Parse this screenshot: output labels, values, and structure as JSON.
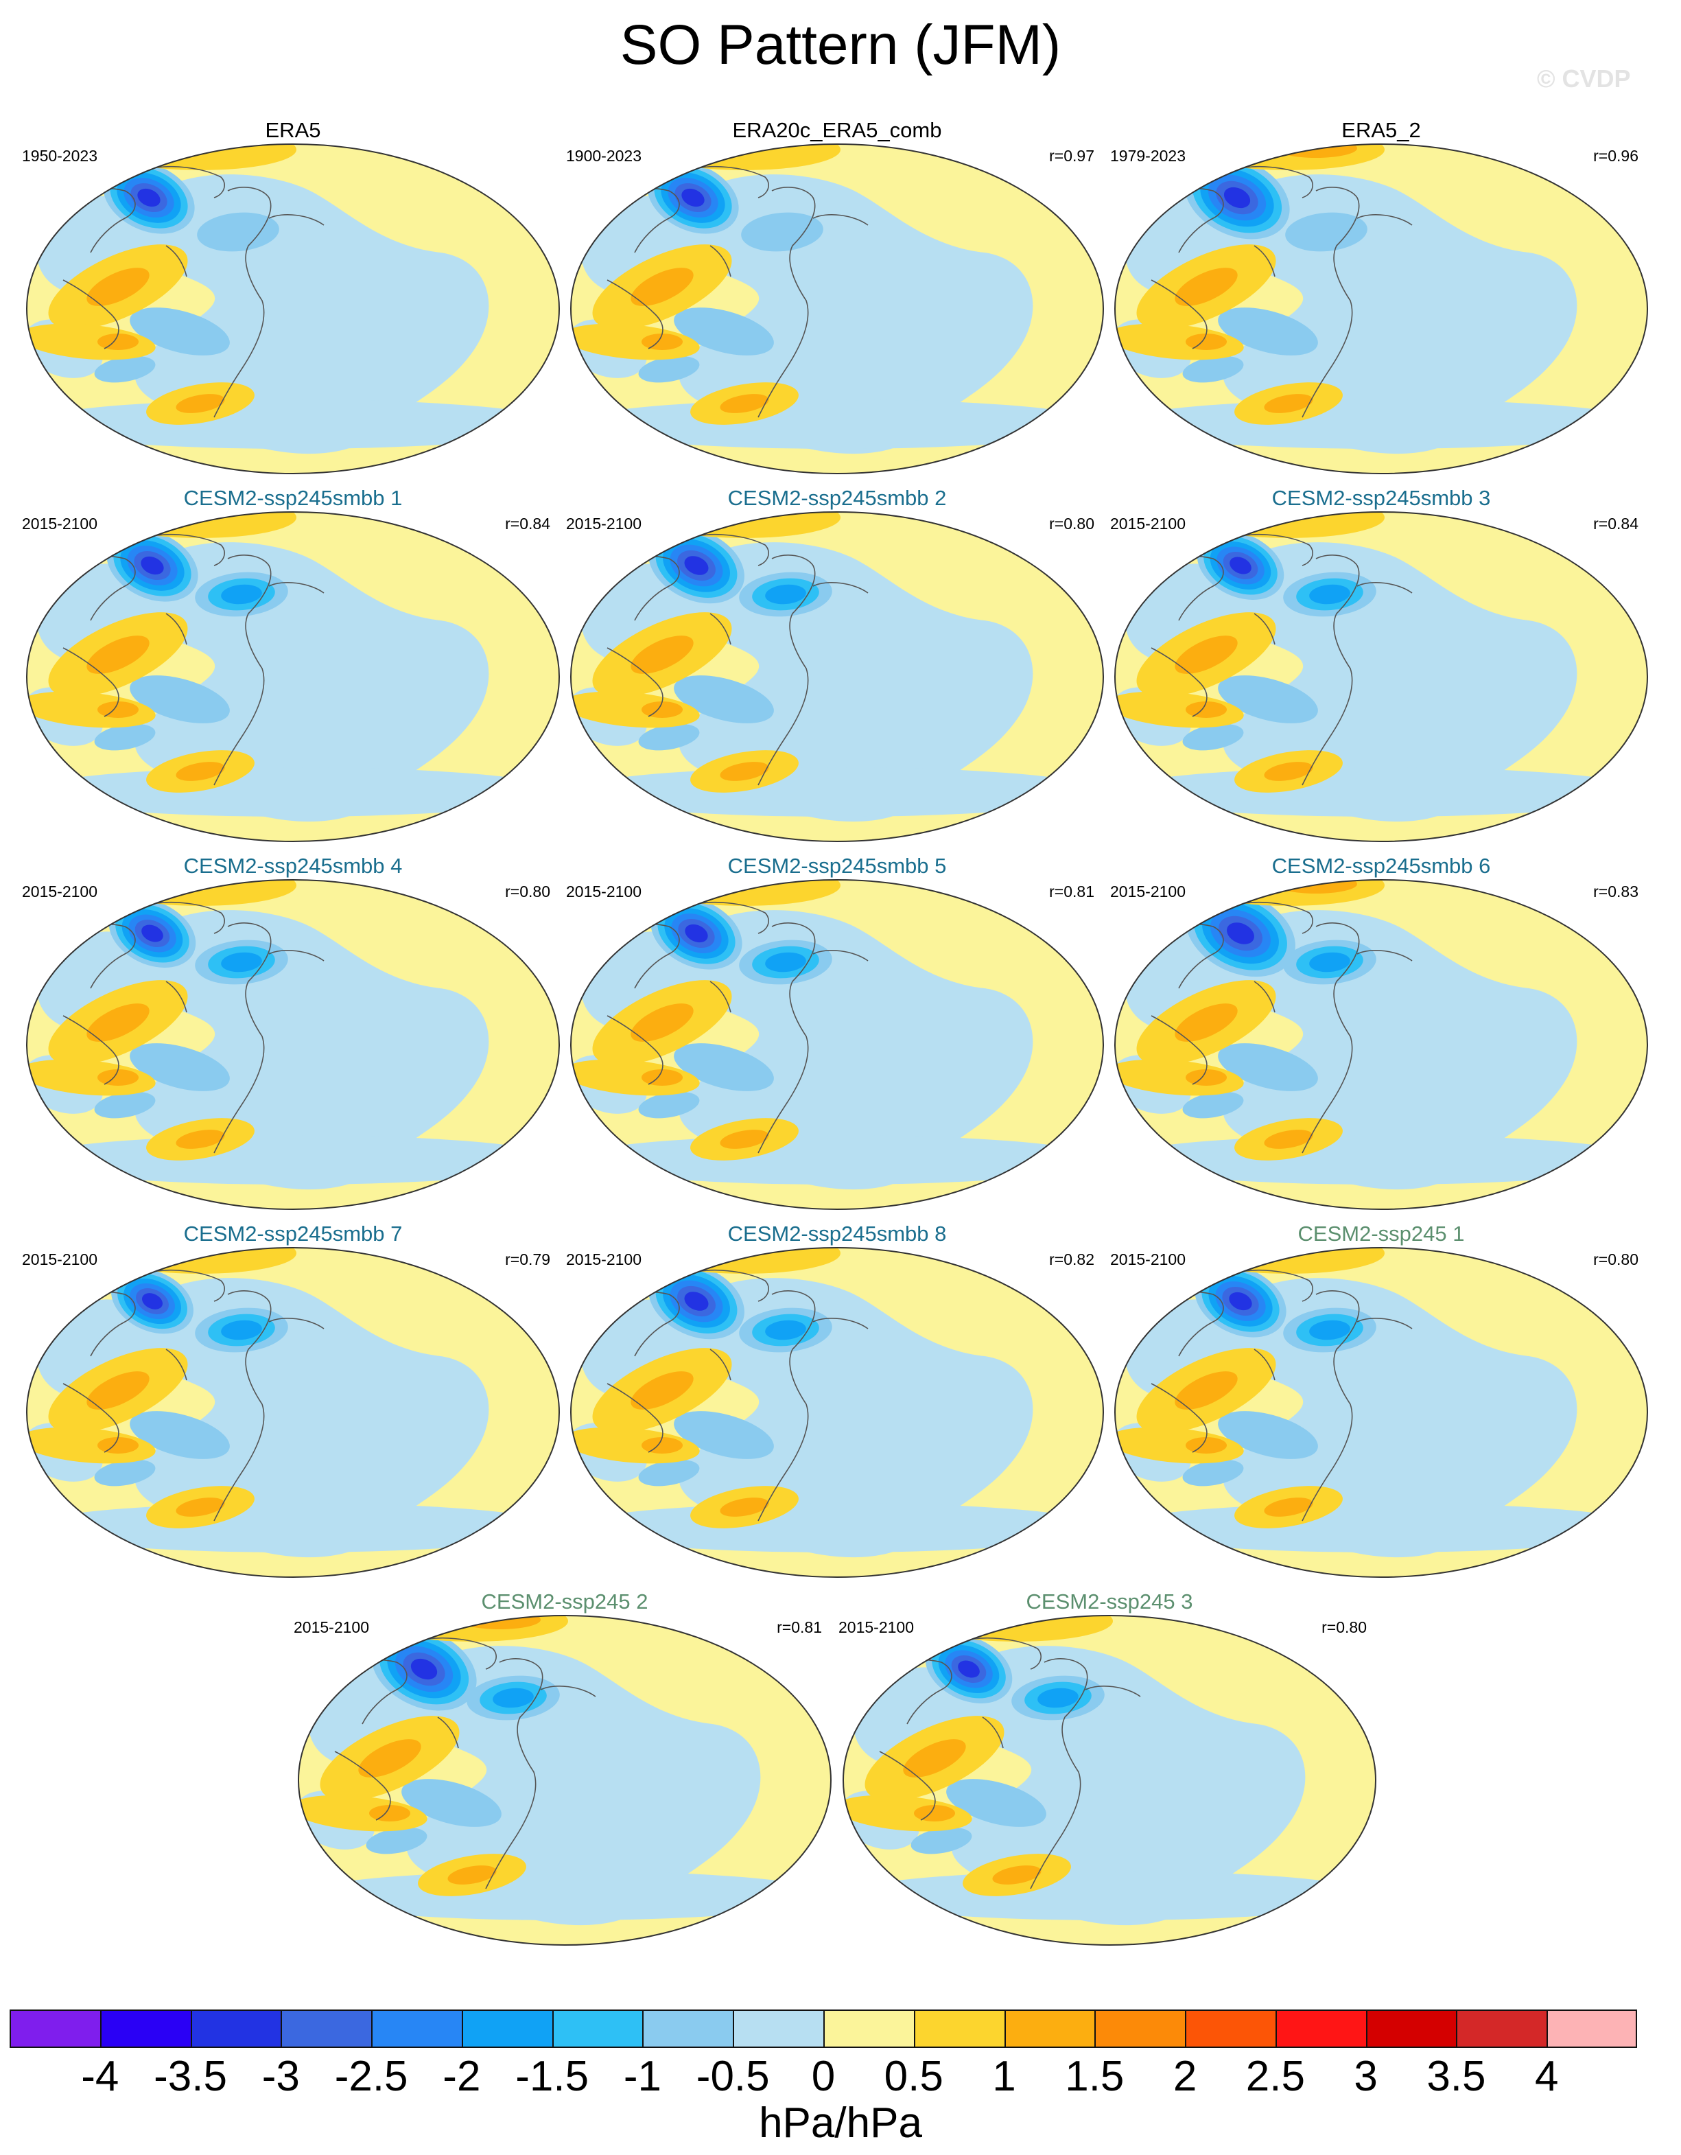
{
  "title": "SO Pattern (JFM)",
  "watermark": "© CVDP",
  "panels": [
    {
      "title": "ERA5",
      "years": "1950-2023",
      "corr": "",
      "title_color": "#000000",
      "variant": 0,
      "strength": 1.0
    },
    {
      "title": "ERA20c_ERA5_comb",
      "years": "1900-2023",
      "corr": "r=0.97",
      "title_color": "#000000",
      "variant": 0,
      "strength": 1.0
    },
    {
      "title": "ERA5_2",
      "years": "1979-2023",
      "corr": "r=0.96",
      "title_color": "#000000",
      "variant": 0,
      "strength": 1.15
    },
    {
      "title": "CESM2-ssp245smbb 1",
      "years": "2015-2100",
      "corr": "r=0.84",
      "title_color": "#1a6e8e",
      "variant": 1,
      "strength": 1.0
    },
    {
      "title": "CESM2-ssp245smbb 2",
      "years": "2015-2100",
      "corr": "r=0.80",
      "title_color": "#1a6e8e",
      "variant": 1,
      "strength": 1.05
    },
    {
      "title": "CESM2-ssp245smbb 3",
      "years": "2015-2100",
      "corr": "r=0.84",
      "title_color": "#1a6e8e",
      "variant": 1,
      "strength": 0.95
    },
    {
      "title": "CESM2-ssp245smbb 4",
      "years": "2015-2100",
      "corr": "r=0.80",
      "title_color": "#1a6e8e",
      "variant": 1,
      "strength": 0.95
    },
    {
      "title": "CESM2-ssp245smbb 5",
      "years": "2015-2100",
      "corr": "r=0.81",
      "title_color": "#1a6e8e",
      "variant": 1,
      "strength": 1.0
    },
    {
      "title": "CESM2-ssp245smbb 6",
      "years": "2015-2100",
      "corr": "r=0.83",
      "title_color": "#1a6e8e",
      "variant": 1,
      "strength": 1.2
    },
    {
      "title": "CESM2-ssp245smbb 7",
      "years": "2015-2100",
      "corr": "r=0.79",
      "title_color": "#1a6e8e",
      "variant": 1,
      "strength": 0.9
    },
    {
      "title": "CESM2-ssp245smbb 8",
      "years": "2015-2100",
      "corr": "r=0.82",
      "title_color": "#1a6e8e",
      "variant": 1,
      "strength": 1.05
    },
    {
      "title": "CESM2-ssp245 1",
      "years": "2015-2100",
      "corr": "r=0.80",
      "title_color": "#5b8f6e",
      "variant": 1,
      "strength": 1.0
    },
    {
      "title": "CESM2-ssp245 2",
      "years": "2015-2100",
      "corr": "r=0.81",
      "title_color": "#5b8f6e",
      "variant": 1,
      "strength": 1.15
    },
    {
      "title": "CESM2-ssp245 3",
      "years": "2015-2100",
      "corr": "r=0.80",
      "title_color": "#5b8f6e",
      "variant": 1,
      "strength": 0.95
    }
  ],
  "colorbar": {
    "unit": "hPa/hPa",
    "ticks": [
      "-4",
      "-3.5",
      "-3",
      "-2.5",
      "-2",
      "-1.5",
      "-1",
      "-0.5",
      "0",
      "0.5",
      "1",
      "1.5",
      "2",
      "2.5",
      "3",
      "3.5",
      "4"
    ],
    "colors": [
      "#7f1eed",
      "#2a00f5",
      "#2233e3",
      "#3b68e0",
      "#2786f5",
      "#10a2f5",
      "#2ec0f5",
      "#8acbef",
      "#b7dff2",
      "#fbf49a",
      "#fcd52e",
      "#fcae10",
      "#fc8a08",
      "#fc5506",
      "#ff1515",
      "#d40000",
      "#d42828",
      "#fdb3b5"
    ]
  }
}
